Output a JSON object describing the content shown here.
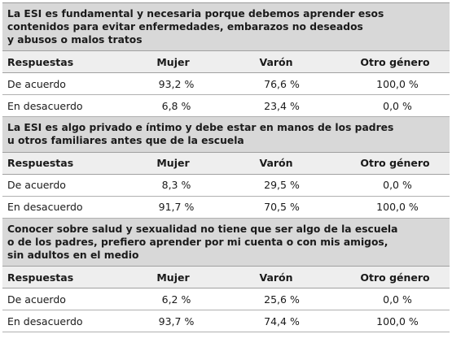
{
  "sections": [
    {
      "question_lines": [
        "La ESI es fundamental y necesaria porque debemos aprender esos",
        "contenidos para evitar enfermedades, embarazos no deseados",
        "y abusos o malos tratos"
      ],
      "headers": [
        "Respuestas",
        "Mujer",
        "Varón",
        "Otro género"
      ],
      "rows": [
        [
          "De acuerdo",
          "93,2 %",
          "76,6 %",
          "100,0 %"
        ],
        [
          "En desacuerdo",
          "6,8 %",
          "23,4 %",
          "0,0 %"
        ]
      ]
    },
    {
      "question_lines": [
        "La ESI es algo privado e íntimo y debe estar en manos de los padres",
        "u otros familiares antes que de la escuela"
      ],
      "headers": [
        "Respuestas",
        "Mujer",
        "Varón",
        "Otro género"
      ],
      "rows": [
        [
          "De acuerdo",
          "8,3 %",
          "29,5 %",
          "0,0 %"
        ],
        [
          "En desacuerdo",
          "91,7 %",
          "70,5 %",
          "100,0 %"
        ]
      ]
    },
    {
      "question_lines": [
        "Conocer sobre salud y sexualidad no tiene que ser algo de la escuela",
        "o de los padres, prefiero aprender por mi cuenta o con mis amigos,",
        "sin adultos en el medio"
      ],
      "headers": [
        "Respuestas",
        "Mujer",
        "Varón",
        "Otro género"
      ],
      "rows": [
        [
          "De acuerdo",
          "6,2 %",
          "25,6 %",
          "0,0 %"
        ],
        [
          "En desacuerdo",
          "93,7 %",
          "74,4 %",
          "100,0 %"
        ]
      ]
    }
  ]
}
